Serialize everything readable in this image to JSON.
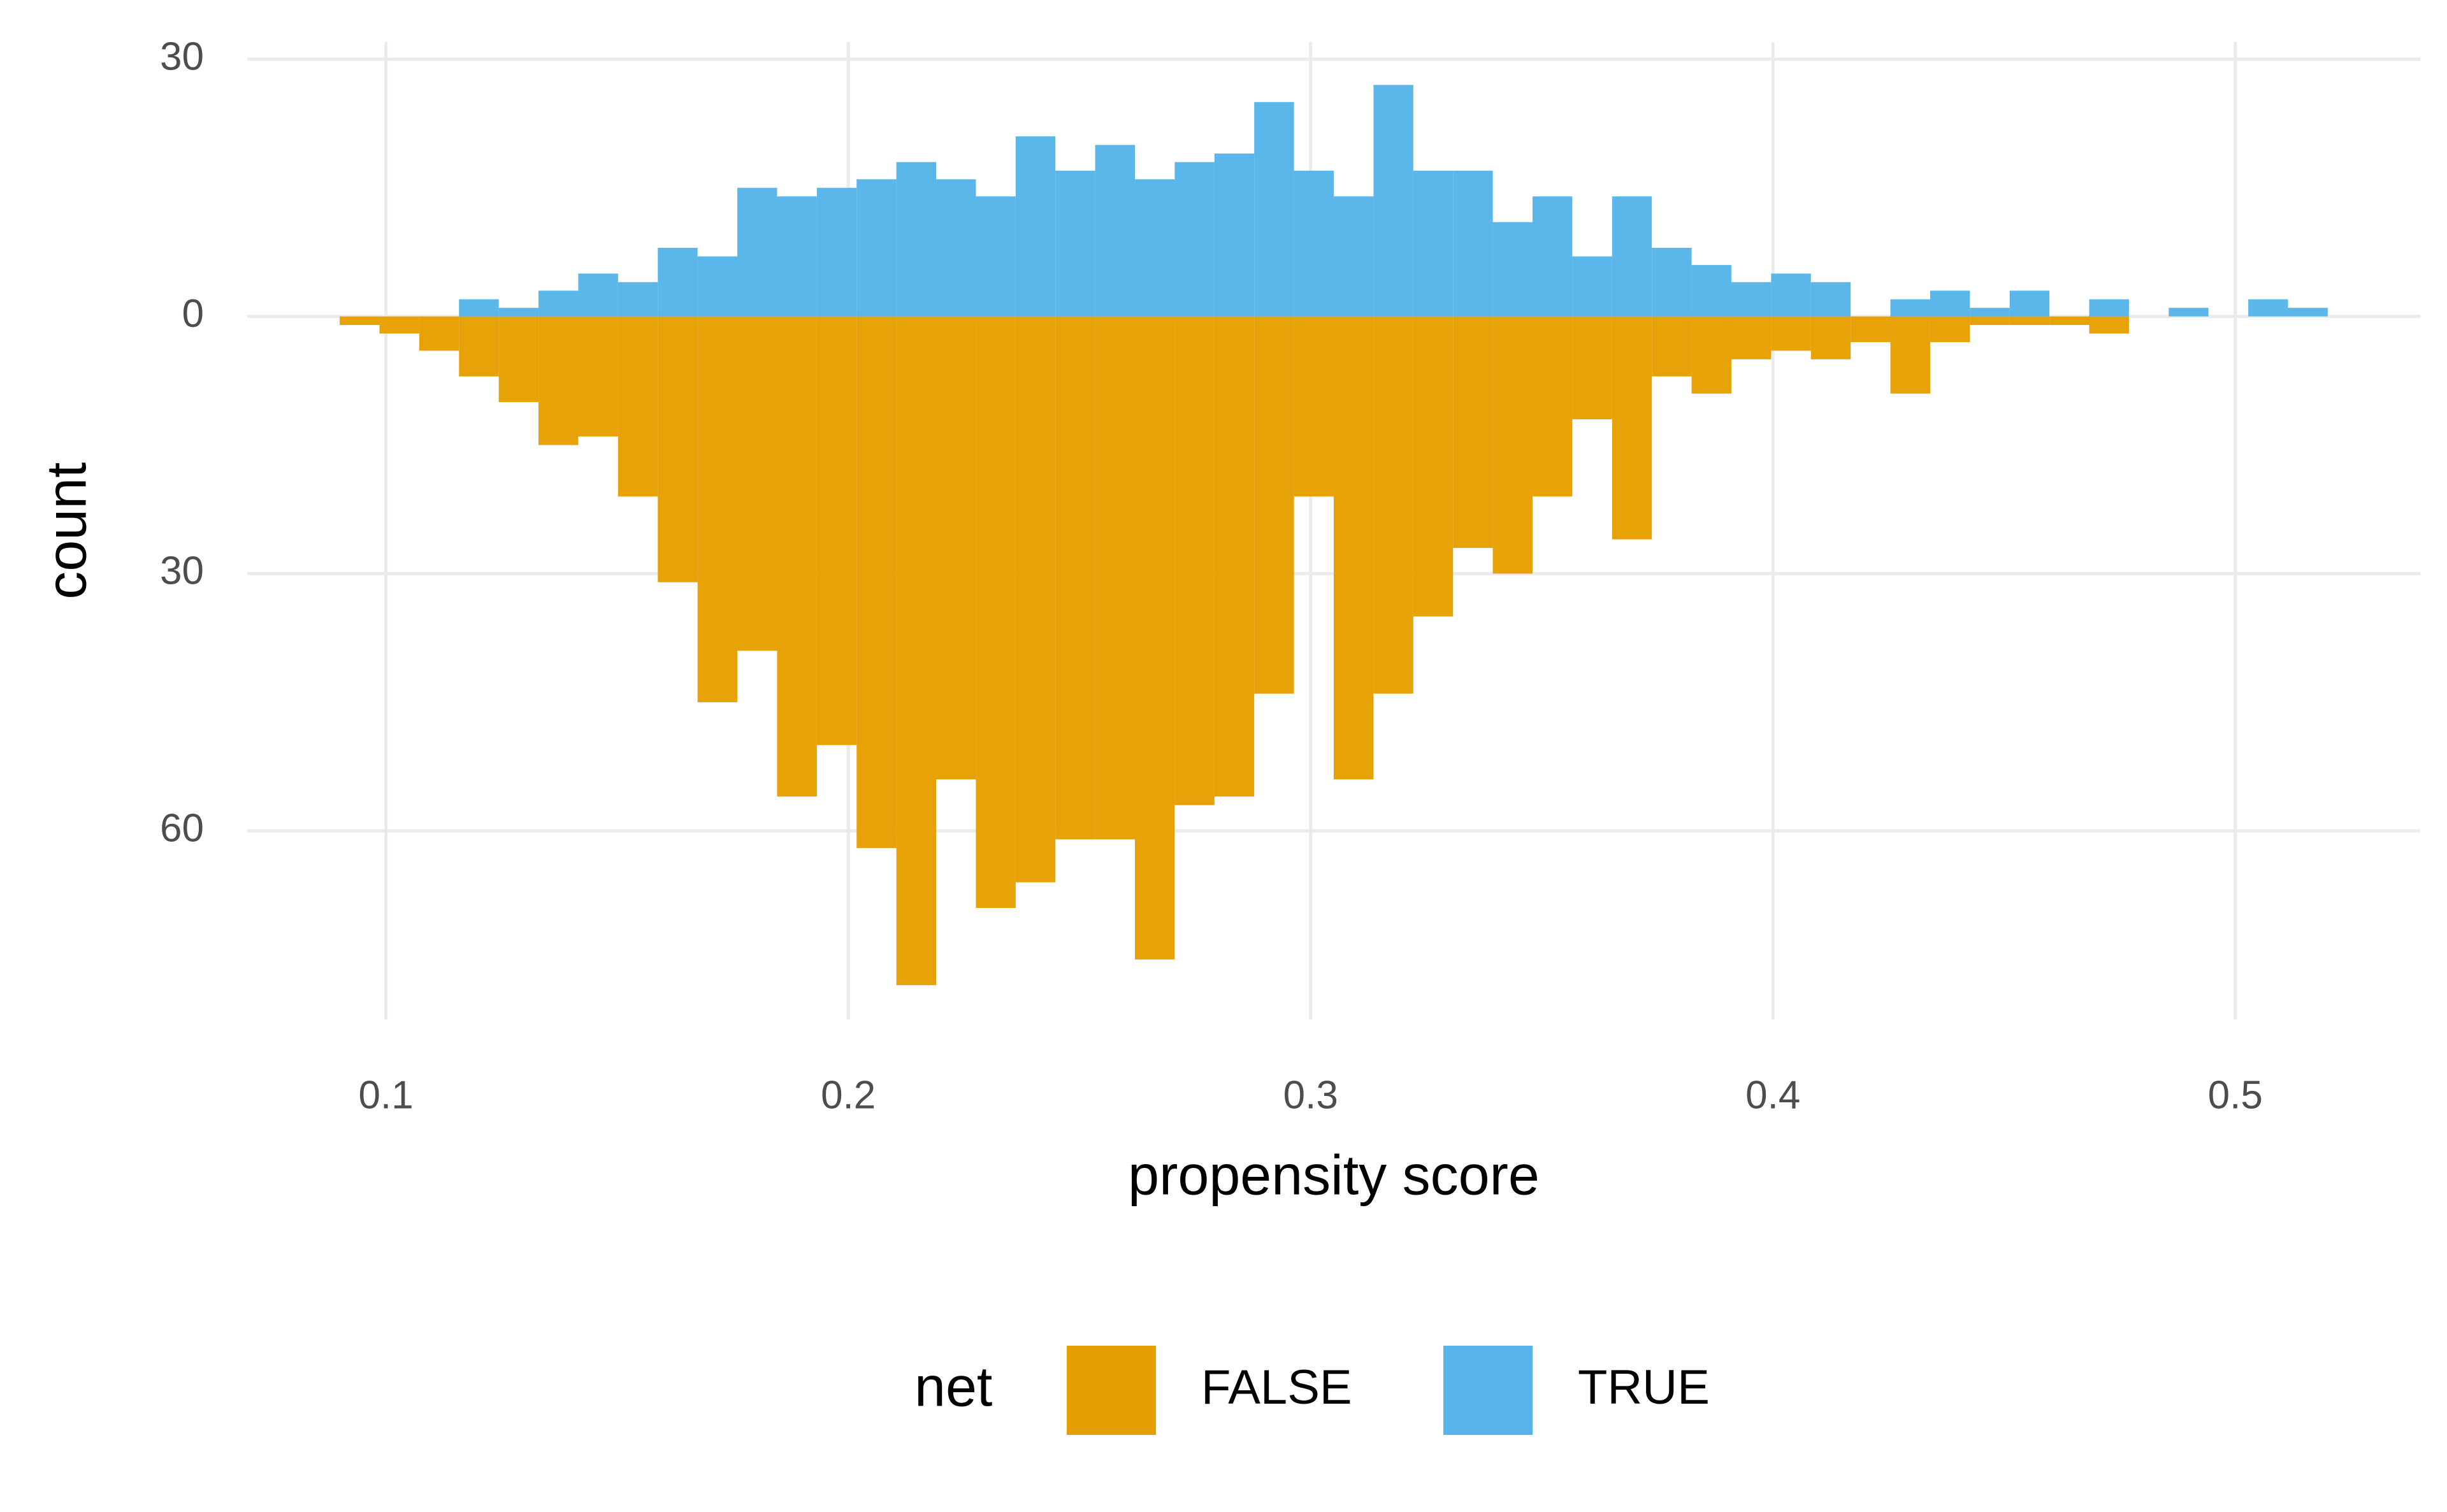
{
  "chart_data": {
    "type": "histogram",
    "x_label": "propensity score",
    "y_label": "count",
    "legend_title": "net",
    "legend_position": "bottom",
    "grid": true,
    "xlim": [
      0.07,
      0.54
    ],
    "ylim": [
      -82,
      32
    ],
    "xticks": [
      0.1,
      0.2,
      0.3,
      0.4,
      0.5
    ],
    "yticks": [
      30,
      0,
      {
        "value": -30,
        "label": "30"
      },
      {
        "value": -60,
        "label": "60"
      }
    ],
    "bins": [
      0.09,
      0.0986,
      0.1072,
      0.1158,
      0.1244,
      0.133,
      0.1416,
      0.1502,
      0.1588,
      0.1674,
      0.176,
      0.1846,
      0.1932,
      0.2018,
      0.2104,
      0.219,
      0.2276,
      0.2362,
      0.2448,
      0.2534,
      0.262,
      0.2706,
      0.2792,
      0.2878,
      0.2964,
      0.305,
      0.3136,
      0.3222,
      0.3308,
      0.3394,
      0.348,
      0.3566,
      0.3652,
      0.3738,
      0.3824,
      0.391,
      0.3996,
      0.4082,
      0.4168,
      0.4254,
      0.434,
      0.4426,
      0.4512,
      0.4598,
      0.4684,
      0.477,
      0.4856,
      0.4942,
      0.5028,
      0.5114,
      0.52
    ],
    "series": [
      {
        "name": "FALSE",
        "color": "#E69F00",
        "values": [
          -1,
          -2,
          -4,
          -7,
          -10,
          -15,
          -14,
          -21,
          -31,
          -45,
          -39,
          -56,
          -50,
          -62,
          -78,
          -54,
          -69,
          -66,
          -61,
          -61,
          -75,
          -57,
          -56,
          -44,
          -21,
          -54,
          -44,
          -35,
          -27,
          -30,
          -21,
          -12,
          -26,
          -7,
          -9,
          -5,
          -4,
          -5,
          -3,
          -9,
          -3,
          -1,
          -1,
          -1,
          -2,
          0,
          0,
          0,
          0,
          0
        ]
      },
      {
        "name": "TRUE",
        "color": "#56B4E9",
        "values": [
          0,
          0,
          0,
          2,
          1,
          3,
          5,
          4,
          8,
          7,
          15,
          14,
          15,
          16,
          18,
          16,
          14,
          21,
          17,
          20,
          16,
          18,
          19,
          25,
          17,
          14,
          27,
          17,
          17,
          11,
          14,
          7,
          14,
          8,
          6,
          4,
          5,
          4,
          0,
          2,
          3,
          1,
          3,
          0,
          2,
          0,
          1,
          0,
          2,
          1
        ]
      }
    ]
  }
}
